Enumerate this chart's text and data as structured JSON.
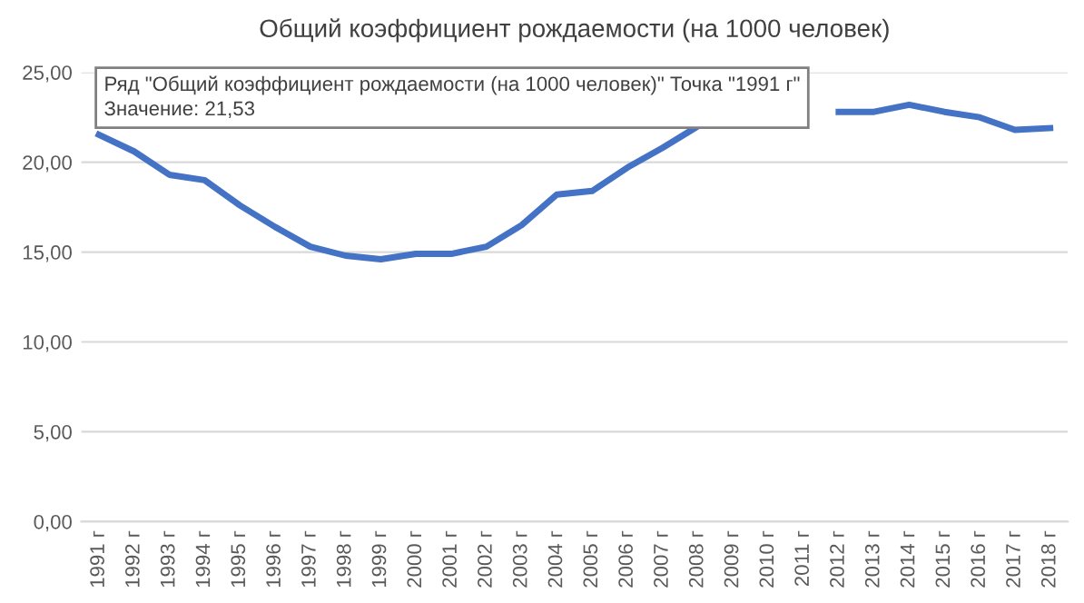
{
  "chart_data": {
    "type": "line",
    "title": "Общий коэффициент рождаемости (на 1000 человек)",
    "categories": [
      "1991 г",
      "1992 г",
      "1993 г",
      "1994 г",
      "1995 г",
      "1996 г",
      "1997 г",
      "1998 г",
      "1999 г",
      "2000 г",
      "2001 г",
      "2002 г",
      "2003 г",
      "2004 г",
      "2005 г",
      "2006 г",
      "2007 г",
      "2008 г",
      "2009 г",
      "2010 г",
      "2011 г",
      "2012 г",
      "2013 г",
      "2014 г",
      "2015 г",
      "2016 г",
      "2017 г",
      "2018 г"
    ],
    "series": [
      {
        "color": "#4472c4",
        "values": [
          21.53,
          20.6,
          19.3,
          19.0,
          17.6,
          16.4,
          15.3,
          14.8,
          14.6,
          14.9,
          14.9,
          15.3,
          16.5,
          18.2,
          18.4,
          19.7,
          20.8,
          22.0,
          null,
          null,
          null,
          22.8,
          22.8,
          23.2,
          22.8,
          22.5,
          21.8,
          21.9
        ]
      }
    ],
    "ylim": [
      0,
      25
    ],
    "yticks": [
      {
        "value": 0,
        "label": "0,00"
      },
      {
        "value": 5,
        "label": "5,00"
      },
      {
        "value": 10,
        "label": "10,00"
      },
      {
        "value": 15,
        "label": "15,00"
      },
      {
        "value": 20,
        "label": "20,00"
      },
      {
        "value": 25,
        "label": "25,00"
      }
    ],
    "grid": "y",
    "legend": false,
    "marker": "none",
    "line_style": "solid",
    "annotations": [
      {
        "text": "Ряд \"Общий коэффициент рождаемости (на 1000 человек)\" Точка \"1991 г\"\nЗначение: 21,53",
        "x": "1991 г",
        "y": 21.53
      }
    ]
  }
}
